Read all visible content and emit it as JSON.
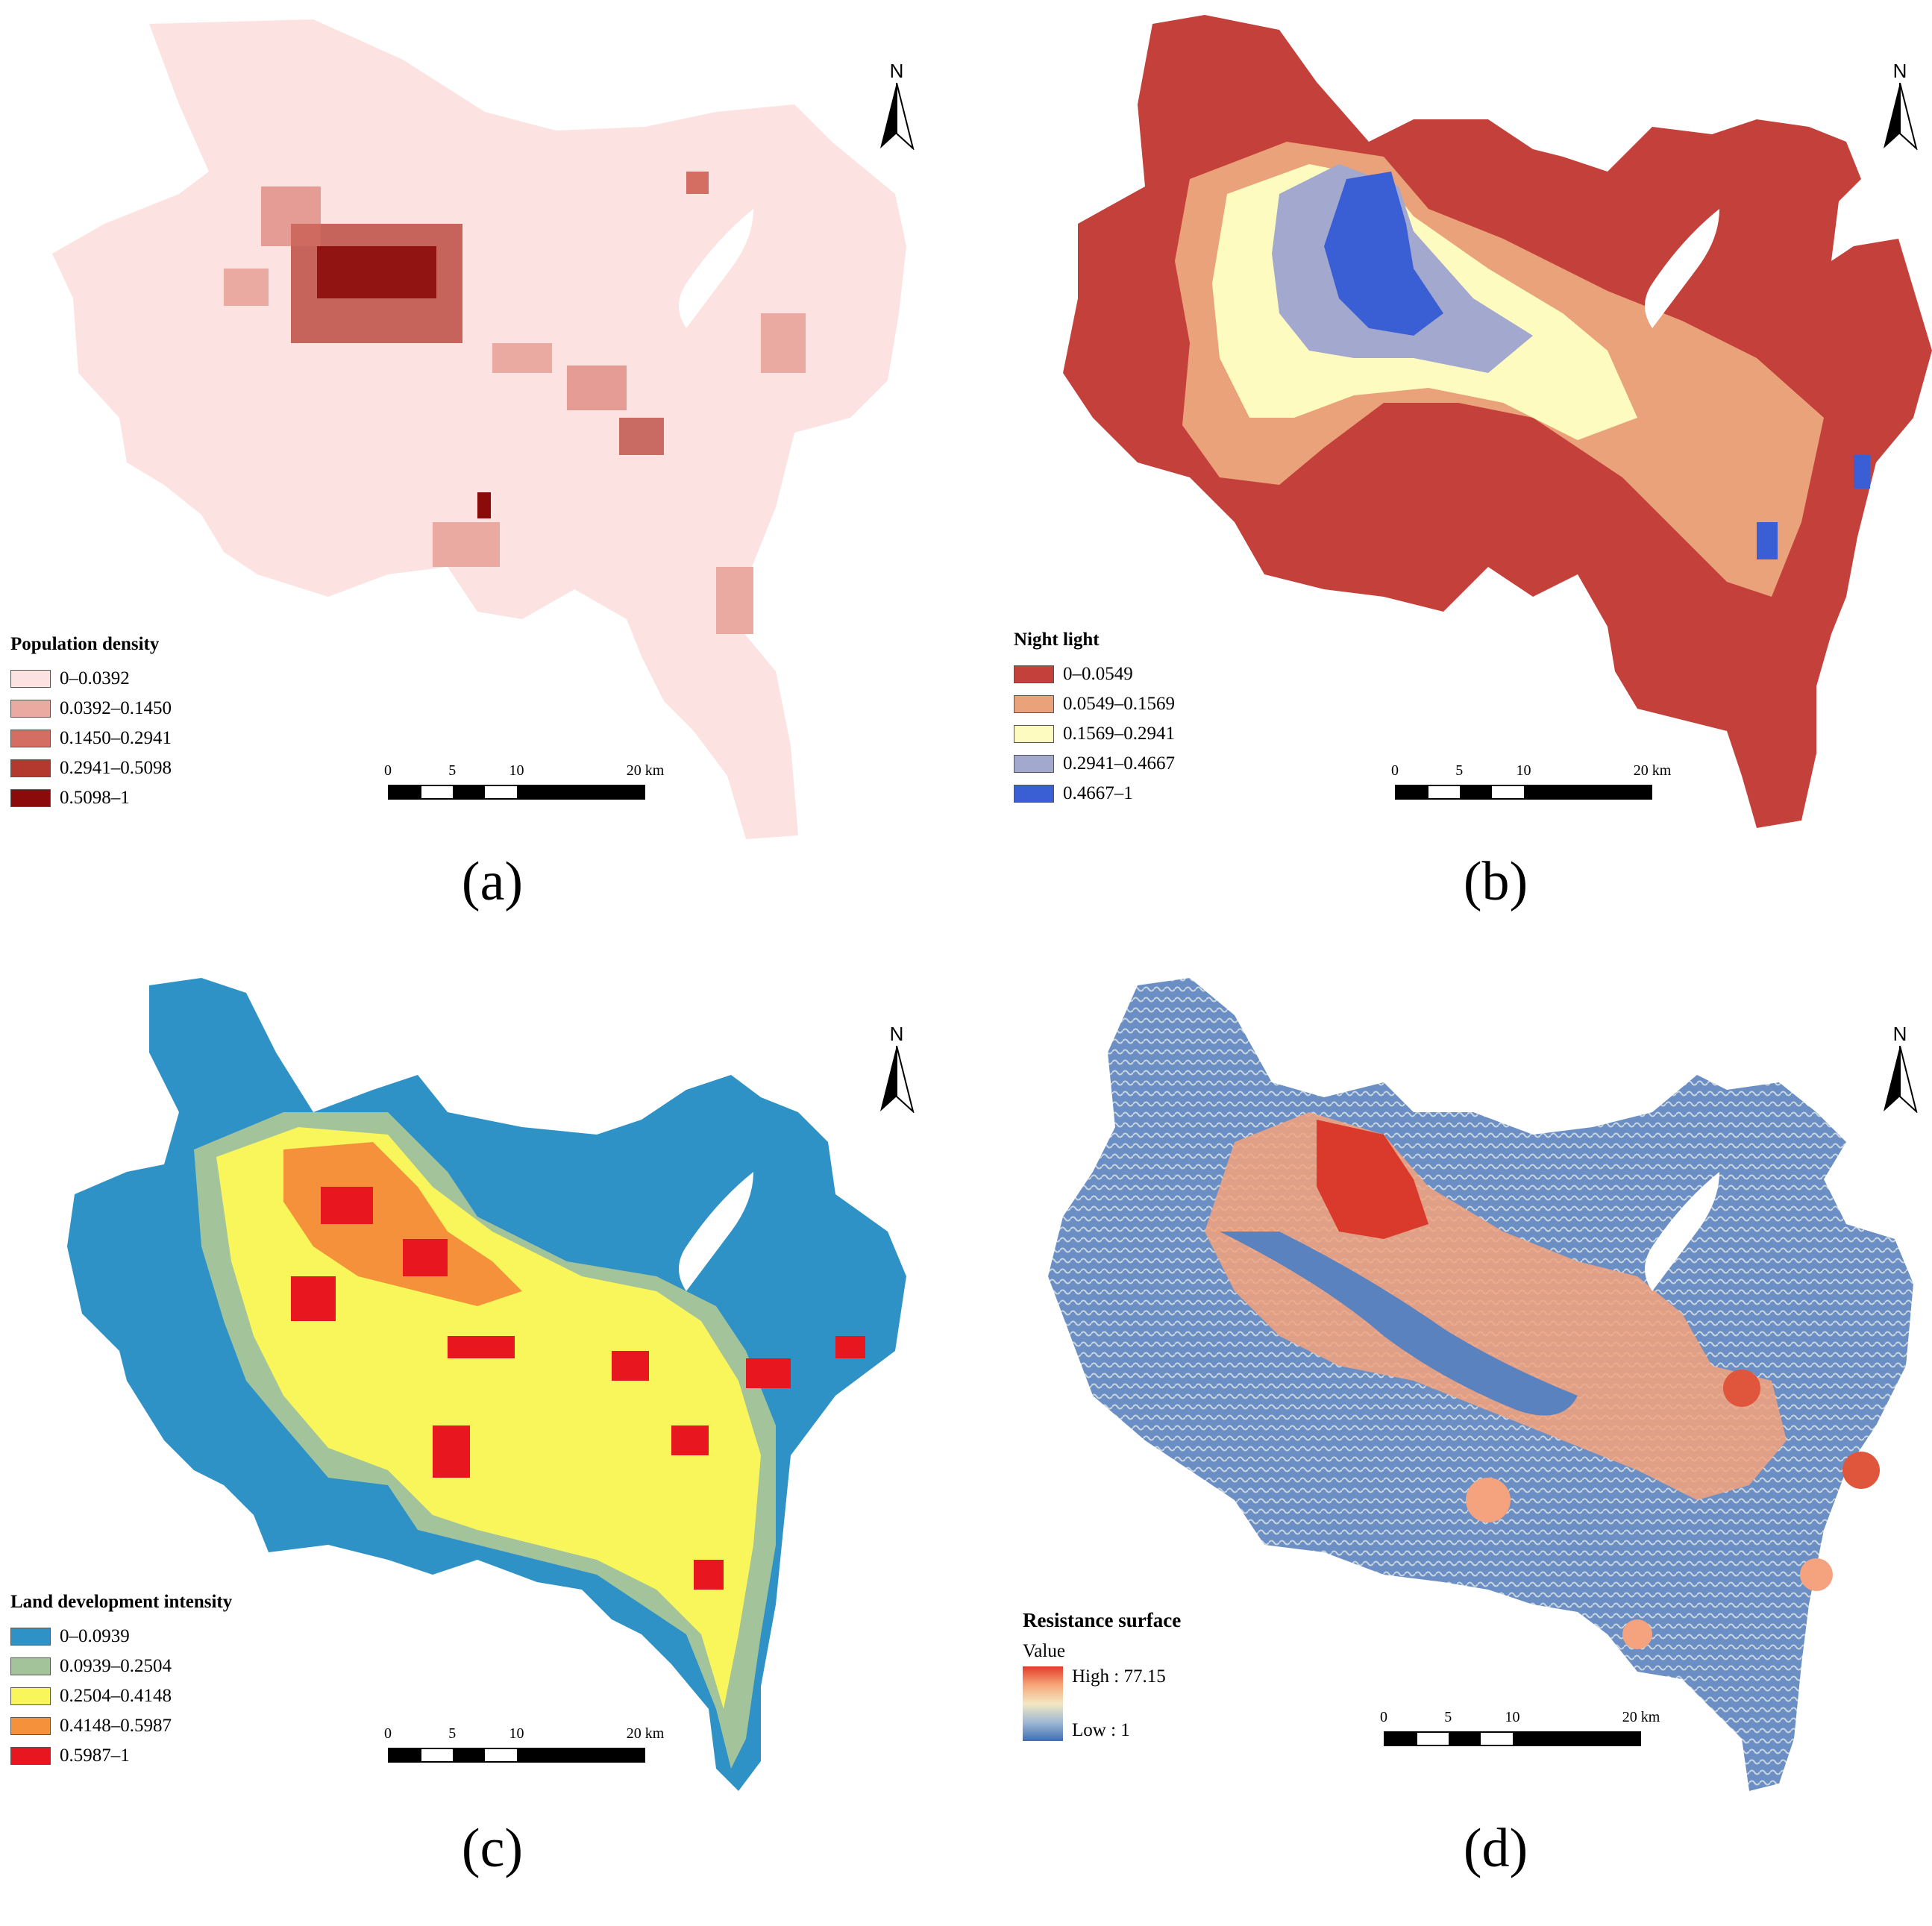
{
  "panels": [
    {
      "id": "a",
      "caption": "(a)",
      "legend_title": "Population density",
      "classes": [
        {
          "label": "0–0.0392",
          "color": "#fde2e2"
        },
        {
          "label": "0.0392–0.1450",
          "color": "#eaa9a1"
        },
        {
          "label": "0.1450–0.2941",
          "color": "#d46e63"
        },
        {
          "label": "0.2941–0.5098",
          "color": "#b3392e"
        },
        {
          "label": "0.5098–1",
          "color": "#8b0a0a"
        }
      ]
    },
    {
      "id": "b",
      "caption": "(b)",
      "legend_title": "Night light",
      "classes": [
        {
          "label": "0–0.0549",
          "color": "#c4403a"
        },
        {
          "label": "0.0549–0.1569",
          "color": "#eaa27a"
        },
        {
          "label": "0.1569–0.2941",
          "color": "#fdfbc0"
        },
        {
          "label": "0.2941–0.4667",
          "color": "#a3a8cf"
        },
        {
          "label": "0.4667–1",
          "color": "#3a5ed4"
        }
      ]
    },
    {
      "id": "c",
      "caption": "(c)",
      "legend_title": "Land development intensity",
      "classes": [
        {
          "label": "0–0.0939",
          "color": "#2e92c6"
        },
        {
          "label": "0.0939–0.2504",
          "color": "#a3c39a"
        },
        {
          "label": "0.2504–0.4148",
          "color": "#f8f65a"
        },
        {
          "label": "0.4148–0.5987",
          "color": "#f5913a"
        },
        {
          "label": "0.5987–1",
          "color": "#e8161e"
        }
      ]
    },
    {
      "id": "d",
      "caption": "(d)",
      "legend_title": "Resistance surface",
      "value_label": "Value",
      "high_label": "High : 77.15",
      "low_label": "Low : 1",
      "high_color": "#e23b2a",
      "low_color": "#3f6db3"
    }
  ],
  "scale": {
    "labels": [
      "0",
      "5",
      "10",
      "20 km"
    ]
  },
  "north_label": "N"
}
